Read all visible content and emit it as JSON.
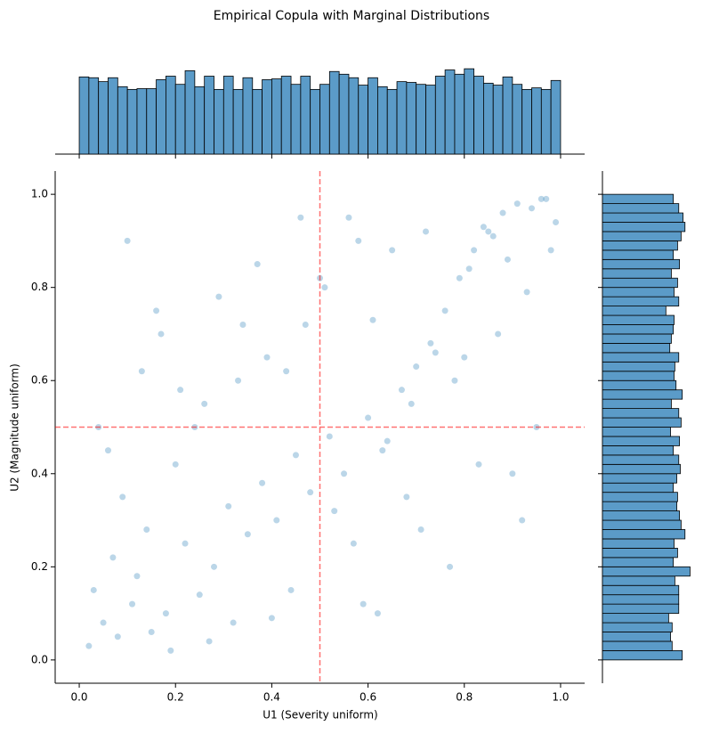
{
  "chart_data": {
    "type": "scatter",
    "title": "Empirical Copula with Marginal Distributions",
    "xlabel": "U1 (Severity uniform)",
    "ylabel": "U2 (Magnitude uniform)",
    "color": "#1f77b4",
    "alpha": 0.3,
    "x": [
      0.02,
      0.05,
      0.08,
      0.03,
      0.11,
      0.15,
      0.07,
      0.12,
      0.18,
      0.22,
      0.25,
      0.09,
      0.14,
      0.28,
      0.31,
      0.2,
      0.35,
      0.04,
      0.38,
      0.41,
      0.26,
      0.45,
      0.33,
      0.48,
      0.17,
      0.52,
      0.29,
      0.55,
      0.43,
      0.6,
      0.37,
      0.63,
      0.47,
      0.67,
      0.58,
      0.7,
      0.51,
      0.73,
      0.64,
      0.76,
      0.56,
      0.79,
      0.69,
      0.82,
      0.61,
      0.85,
      0.74,
      0.88,
      0.81,
      0.91,
      0.86,
      0.94,
      0.78,
      0.97,
      0.89,
      0.99,
      0.93,
      0.96,
      0.84,
      0.98,
      0.06,
      0.13,
      0.19,
      0.24,
      0.32,
      0.39,
      0.44,
      0.5,
      0.57,
      0.62,
      0.68,
      0.72,
      0.77,
      0.83,
      0.87,
      0.92,
      0.95,
      0.1,
      0.16,
      0.21,
      0.27,
      0.34,
      0.4,
      0.46,
      0.53,
      0.59,
      0.65,
      0.71,
      0.8,
      0.9
    ],
    "y": [
      0.03,
      0.08,
      0.05,
      0.15,
      0.12,
      0.06,
      0.22,
      0.18,
      0.1,
      0.25,
      0.14,
      0.35,
      0.28,
      0.2,
      0.33,
      0.42,
      0.27,
      0.5,
      0.38,
      0.3,
      0.55,
      0.44,
      0.6,
      0.36,
      0.7,
      0.48,
      0.78,
      0.4,
      0.62,
      0.52,
      0.85,
      0.45,
      0.72,
      0.58,
      0.9,
      0.63,
      0.8,
      0.68,
      0.47,
      0.75,
      0.95,
      0.82,
      0.55,
      0.88,
      0.73,
      0.92,
      0.66,
      0.96,
      0.84,
      0.98,
      0.91,
      0.97,
      0.6,
      0.99,
      0.86,
      0.94,
      0.79,
      0.99,
      0.93,
      0.88,
      0.45,
      0.62,
      0.02,
      0.5,
      0.08,
      0.65,
      0.15,
      0.82,
      0.25,
      0.1,
      0.35,
      0.92,
      0.2,
      0.42,
      0.7,
      0.3,
      0.5,
      0.9,
      0.75,
      0.58,
      0.04,
      0.72,
      0.09,
      0.95,
      0.32,
      0.12,
      0.88,
      0.28,
      0.65,
      0.4
    ],
    "xlim": [
      -0.05,
      1.05
    ],
    "ylim": [
      -0.05,
      1.05
    ],
    "xticks": [
      {
        "value": 0,
        "label": "0.0"
      },
      0.2,
      0.4,
      0.6,
      0.8,
      {
        "value": 1,
        "label": "1.0"
      }
    ],
    "yticks": [
      {
        "value": 0,
        "label": "0.0"
      },
      0.2,
      0.4,
      0.6,
      0.8,
      {
        "value": 1,
        "label": "1.0"
      }
    ],
    "vline": 0.5,
    "hline": 0.5,
    "line_color": "#ff0000",
    "marginal_x": {
      "type": "histogram",
      "color": "#5b9bc8",
      "lim": [
        0,
        240
      ],
      "bins": [
        0,
        0.02,
        0.04,
        0.06,
        0.08,
        0.1,
        0.12,
        0.14,
        0.16,
        0.18,
        0.2,
        0.22,
        0.24,
        0.26,
        0.28,
        0.3,
        0.32,
        0.34,
        0.36,
        0.38,
        0.4,
        0.42,
        0.44,
        0.46,
        0.48,
        0.5,
        0.52,
        0.54,
        0.56,
        0.58,
        0.6,
        0.62,
        0.64,
        0.66,
        0.68,
        0.7,
        0.72,
        0.74,
        0.76,
        0.78,
        0.8,
        0.82,
        0.84,
        0.86,
        0.88,
        0.9,
        0.92,
        0.94,
        0.96,
        0.98,
        1
      ],
      "counts": [
        198,
        196,
        186,
        196,
        173,
        166,
        168,
        168,
        191,
        200,
        179,
        214,
        173,
        200,
        166,
        200,
        166,
        196,
        166,
        191,
        193,
        200,
        179,
        200,
        166,
        179,
        212,
        205,
        196,
        177,
        196,
        173,
        166,
        186,
        184,
        179,
        177,
        200,
        216,
        205,
        219,
        200,
        182,
        177,
        198,
        179,
        166,
        170,
        166,
        189
      ]
    },
    "marginal_y": {
      "type": "histogram",
      "color": "#5b9bc8",
      "lim": [
        0,
        240
      ],
      "bins": [
        0,
        0.02,
        0.04,
        0.06,
        0.08,
        0.1,
        0.12,
        0.14,
        0.16,
        0.18,
        0.2,
        0.22,
        0.24,
        0.26,
        0.28,
        0.3,
        0.32,
        0.34,
        0.36,
        0.38,
        0.4,
        0.42,
        0.44,
        0.46,
        0.48,
        0.5,
        0.52,
        0.54,
        0.56,
        0.58,
        0.6,
        0.62,
        0.64,
        0.66,
        0.68,
        0.7,
        0.72,
        0.74,
        0.76,
        0.78,
        0.8,
        0.82,
        0.84,
        0.86,
        0.88,
        0.9,
        0.92,
        0.94,
        0.96,
        0.98,
        1
      ],
      "counts": [
        205,
        179,
        175,
        179,
        170,
        196,
        196,
        196,
        186,
        225,
        182,
        193,
        184,
        212,
        202,
        198,
        191,
        193,
        182,
        191,
        200,
        196,
        182,
        198,
        175,
        202,
        196,
        177,
        205,
        189,
        184,
        186,
        196,
        173,
        177,
        182,
        184,
        163,
        196,
        184,
        193,
        177,
        198,
        182,
        193,
        202,
        212,
        207,
        196,
        182
      ]
    }
  }
}
